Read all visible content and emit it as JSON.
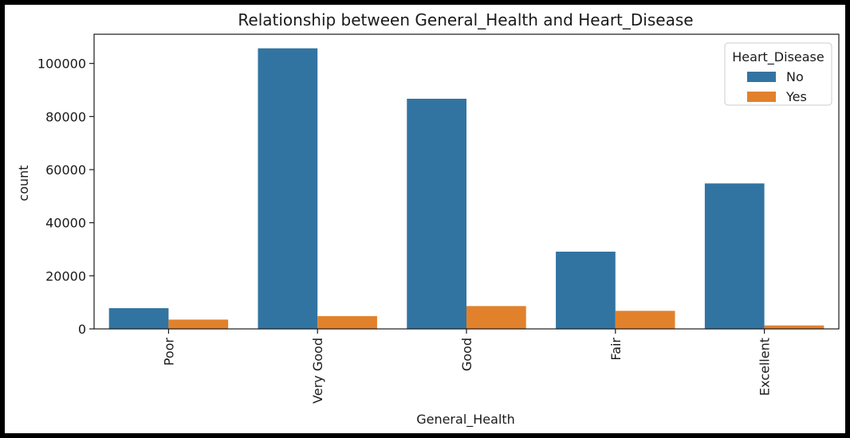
{
  "chart_data": {
    "type": "bar",
    "title": "Relationship between General_Health and Heart_Disease",
    "xlabel": "General_Health",
    "ylabel": "count",
    "categories": [
      "Poor",
      "Very Good",
      "Good",
      "Fair",
      "Excellent"
    ],
    "series": [
      {
        "name": "No",
        "color": "#3274a1",
        "values": [
          7800,
          105700,
          86700,
          29100,
          54800
        ]
      },
      {
        "name": "Yes",
        "color": "#e1812c",
        "values": [
          3500,
          4800,
          8600,
          6800,
          1300
        ]
      }
    ],
    "ylim": [
      0,
      111000
    ],
    "yticks": [
      0,
      20000,
      40000,
      60000,
      80000,
      100000
    ],
    "ytick_labels": [
      "0",
      "20000",
      "40000",
      "60000",
      "80000",
      "100000"
    ],
    "xtick_rotation": "vertical",
    "grid": false,
    "legend": {
      "title": "Heart_Disease",
      "placement": "top-right"
    }
  }
}
